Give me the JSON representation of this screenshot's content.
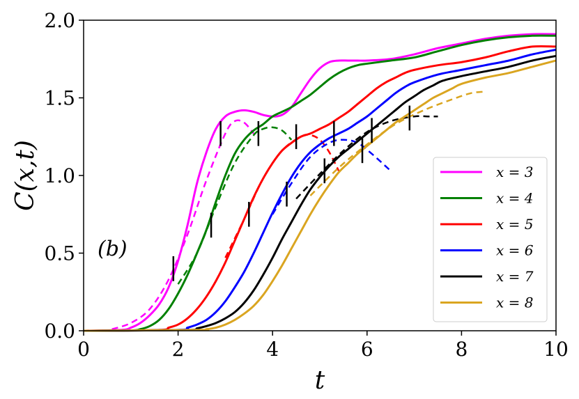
{
  "chart_data": {
    "type": "line",
    "xlabel": "t",
    "ylabel": "C(x,t)",
    "xlim": [
      0,
      10
    ],
    "ylim": [
      0,
      2.0
    ],
    "xticks": [
      0,
      2,
      4,
      6,
      8,
      10
    ],
    "yticks": [
      0.0,
      0.5,
      1.0,
      1.5,
      2.0
    ],
    "xtick_labels": [
      "0",
      "2",
      "4",
      "6",
      "8",
      "10"
    ],
    "ytick_labels": [
      "0.0",
      "0.5",
      "1.0",
      "1.5",
      "2.0"
    ],
    "annotation": "(b)",
    "legend_position": "lower-right",
    "series": [
      {
        "name": "x = 3",
        "color": "#ff00ff",
        "x": [
          0,
          0.8,
          1.0,
          1.2,
          1.4,
          1.6,
          1.8,
          2.0,
          2.2,
          2.4,
          2.6,
          2.8,
          3.0,
          3.2,
          3.4,
          3.6,
          3.8,
          4.0,
          4.2,
          4.4,
          4.6,
          4.8,
          5.0,
          5.2,
          5.4,
          5.6,
          5.8,
          6.0,
          6.5,
          7.0,
          7.5,
          8.0,
          8.5,
          9.0,
          9.5,
          10.0
        ],
        "y": [
          0,
          0.005,
          0.02,
          0.05,
          0.1,
          0.17,
          0.28,
          0.45,
          0.68,
          0.95,
          1.15,
          1.3,
          1.38,
          1.41,
          1.42,
          1.41,
          1.39,
          1.38,
          1.39,
          1.44,
          1.53,
          1.62,
          1.69,
          1.73,
          1.74,
          1.74,
          1.74,
          1.74,
          1.75,
          1.78,
          1.82,
          1.85,
          1.88,
          1.9,
          1.91,
          1.91
        ]
      },
      {
        "name": "x = 4",
        "color": "#008000",
        "x": [
          0,
          1.0,
          1.2,
          1.4,
          1.6,
          1.8,
          2.0,
          2.2,
          2.4,
          2.6,
          2.8,
          3.0,
          3.2,
          3.4,
          3.6,
          3.8,
          4.0,
          4.2,
          4.4,
          4.6,
          4.8,
          5.0,
          5.2,
          5.4,
          5.6,
          5.8,
          6.0,
          6.5,
          7.0,
          7.5,
          8.0,
          8.5,
          9.0,
          9.5,
          10.0
        ],
        "y": [
          0,
          0.002,
          0.01,
          0.03,
          0.07,
          0.14,
          0.24,
          0.36,
          0.5,
          0.65,
          0.83,
          1.0,
          1.14,
          1.23,
          1.29,
          1.33,
          1.38,
          1.41,
          1.44,
          1.48,
          1.52,
          1.57,
          1.62,
          1.66,
          1.69,
          1.71,
          1.72,
          1.74,
          1.76,
          1.8,
          1.84,
          1.87,
          1.89,
          1.9,
          1.9
        ]
      },
      {
        "name": "x = 5",
        "color": "#ff0000",
        "x": [
          0,
          1.6,
          1.8,
          2.0,
          2.2,
          2.4,
          2.6,
          2.8,
          3.0,
          3.2,
          3.4,
          3.6,
          3.8,
          4.0,
          4.2,
          4.4,
          4.6,
          4.8,
          5.0,
          5.2,
          5.4,
          5.6,
          5.8,
          6.0,
          6.2,
          6.4,
          6.6,
          6.8,
          7.0,
          7.5,
          8.0,
          8.5,
          9.0,
          9.5,
          10.0
        ],
        "y": [
          0,
          0.005,
          0.02,
          0.04,
          0.08,
          0.14,
          0.22,
          0.32,
          0.44,
          0.58,
          0.72,
          0.86,
          0.98,
          1.08,
          1.16,
          1.21,
          1.25,
          1.27,
          1.3,
          1.33,
          1.37,
          1.41,
          1.46,
          1.51,
          1.56,
          1.6,
          1.63,
          1.66,
          1.68,
          1.71,
          1.73,
          1.76,
          1.8,
          1.83,
          1.83
        ]
      },
      {
        "name": "x = 6",
        "color": "#0000ff",
        "x": [
          0,
          2.0,
          2.2,
          2.4,
          2.6,
          2.8,
          3.0,
          3.2,
          3.4,
          3.6,
          3.8,
          4.0,
          4.2,
          4.4,
          4.6,
          4.8,
          5.0,
          5.2,
          5.4,
          5.6,
          5.8,
          6.0,
          6.2,
          6.4,
          6.6,
          6.8,
          7.0,
          7.5,
          8.0,
          8.5,
          9.0,
          9.5,
          10.0
        ],
        "y": [
          0,
          0.005,
          0.02,
          0.04,
          0.07,
          0.12,
          0.19,
          0.28,
          0.38,
          0.5,
          0.63,
          0.76,
          0.88,
          0.99,
          1.08,
          1.15,
          1.2,
          1.24,
          1.27,
          1.3,
          1.34,
          1.38,
          1.43,
          1.48,
          1.53,
          1.57,
          1.6,
          1.65,
          1.68,
          1.71,
          1.74,
          1.78,
          1.81
        ]
      },
      {
        "name": "x = 7",
        "color": "#000000",
        "x": [
          0,
          2.2,
          2.4,
          2.6,
          2.8,
          3.0,
          3.2,
          3.4,
          3.6,
          3.8,
          4.0,
          4.2,
          4.4,
          4.6,
          4.8,
          5.0,
          5.2,
          5.4,
          5.6,
          5.8,
          6.0,
          6.2,
          6.4,
          6.6,
          6.8,
          7.0,
          7.2,
          7.4,
          7.6,
          8.0,
          8.5,
          9.0,
          9.5,
          10.0
        ],
        "y": [
          0,
          0.005,
          0.015,
          0.03,
          0.05,
          0.08,
          0.12,
          0.18,
          0.26,
          0.36,
          0.47,
          0.59,
          0.7,
          0.81,
          0.91,
          0.99,
          1.06,
          1.12,
          1.17,
          1.22,
          1.27,
          1.32,
          1.37,
          1.42,
          1.47,
          1.51,
          1.55,
          1.58,
          1.61,
          1.64,
          1.67,
          1.7,
          1.74,
          1.77
        ]
      },
      {
        "name": "x = 8",
        "color": "#daa520",
        "x": [
          0,
          2.4,
          2.6,
          2.8,
          3.0,
          3.2,
          3.4,
          3.6,
          3.8,
          4.0,
          4.2,
          4.4,
          4.6,
          4.8,
          5.0,
          5.2,
          5.4,
          5.6,
          5.8,
          6.0,
          6.2,
          6.4,
          6.6,
          6.8,
          7.0,
          7.2,
          7.4,
          7.6,
          7.8,
          8.0,
          8.5,
          9.0,
          9.5,
          10.0
        ],
        "y": [
          0,
          0.005,
          0.01,
          0.02,
          0.04,
          0.07,
          0.11,
          0.16,
          0.23,
          0.32,
          0.42,
          0.53,
          0.64,
          0.75,
          0.85,
          0.94,
          1.02,
          1.08,
          1.14,
          1.19,
          1.24,
          1.29,
          1.34,
          1.38,
          1.42,
          1.46,
          1.5,
          1.53,
          1.56,
          1.59,
          1.63,
          1.66,
          1.7,
          1.74
        ]
      }
    ],
    "dashed_fits": [
      {
        "series": "x = 3",
        "color": "#ff00ff",
        "x": [
          0.6,
          1.0,
          1.4,
          1.8,
          2.2,
          2.6,
          3.0,
          3.2,
          3.4,
          3.6
        ],
        "y": [
          0.01,
          0.05,
          0.14,
          0.33,
          0.62,
          0.97,
          1.27,
          1.35,
          1.34,
          1.27
        ]
      },
      {
        "series": "x = 4",
        "color": "#008000",
        "x": [
          2.0,
          2.4,
          2.8,
          3.2,
          3.6,
          3.8,
          4.0,
          4.2,
          4.4
        ],
        "y": [
          0.3,
          0.5,
          0.8,
          1.08,
          1.26,
          1.3,
          1.31,
          1.29,
          1.23
        ]
      },
      {
        "series": "x = 5",
        "color": "#ff0000",
        "x": [
          3.0,
          3.4,
          3.8,
          4.2,
          4.6,
          4.8,
          5.0,
          5.2,
          5.4
        ],
        "y": [
          0.47,
          0.72,
          0.98,
          1.16,
          1.25,
          1.26,
          1.23,
          1.15,
          1.03
        ]
      },
      {
        "series": "x = 6",
        "color": "#0000ff",
        "x": [
          4.0,
          4.4,
          4.8,
          5.2,
          5.5,
          5.8,
          6.1,
          6.5
        ],
        "y": [
          0.75,
          0.95,
          1.12,
          1.21,
          1.23,
          1.21,
          1.14,
          1.03
        ]
      },
      {
        "series": "x = 7",
        "color": "#000000",
        "x": [
          4.5,
          5.0,
          5.5,
          6.0,
          6.5,
          7.0,
          7.3,
          7.5
        ],
        "y": [
          0.85,
          1.01,
          1.16,
          1.28,
          1.35,
          1.38,
          1.38,
          1.38
        ]
      },
      {
        "series": "x = 8",
        "color": "#daa520",
        "x": [
          4.8,
          5.4,
          6.0,
          6.6,
          7.2,
          7.8,
          8.2,
          8.5
        ],
        "y": [
          0.87,
          1.05,
          1.2,
          1.33,
          1.42,
          1.49,
          1.53,
          1.54
        ]
      }
    ],
    "error_bars": [
      {
        "x": 1.9,
        "y": 0.4,
        "halfwidth": 0.08
      },
      {
        "x": 2.7,
        "y": 0.68,
        "halfwidth": 0.08
      },
      {
        "x": 2.9,
        "y": 1.27,
        "halfwidth": 0.08
      },
      {
        "x": 3.5,
        "y": 0.75,
        "halfwidth": 0.08
      },
      {
        "x": 3.7,
        "y": 1.27,
        "halfwidth": 0.08
      },
      {
        "x": 4.3,
        "y": 0.88,
        "halfwidth": 0.08
      },
      {
        "x": 4.5,
        "y": 1.25,
        "halfwidth": 0.08
      },
      {
        "x": 5.1,
        "y": 1.03,
        "halfwidth": 0.08
      },
      {
        "x": 5.3,
        "y": 1.27,
        "halfwidth": 0.08
      },
      {
        "x": 5.9,
        "y": 1.16,
        "halfwidth": 0.08
      },
      {
        "x": 6.1,
        "y": 1.29,
        "halfwidth": 0.08
      },
      {
        "x": 6.9,
        "y": 1.37,
        "halfwidth": 0.08
      }
    ]
  }
}
